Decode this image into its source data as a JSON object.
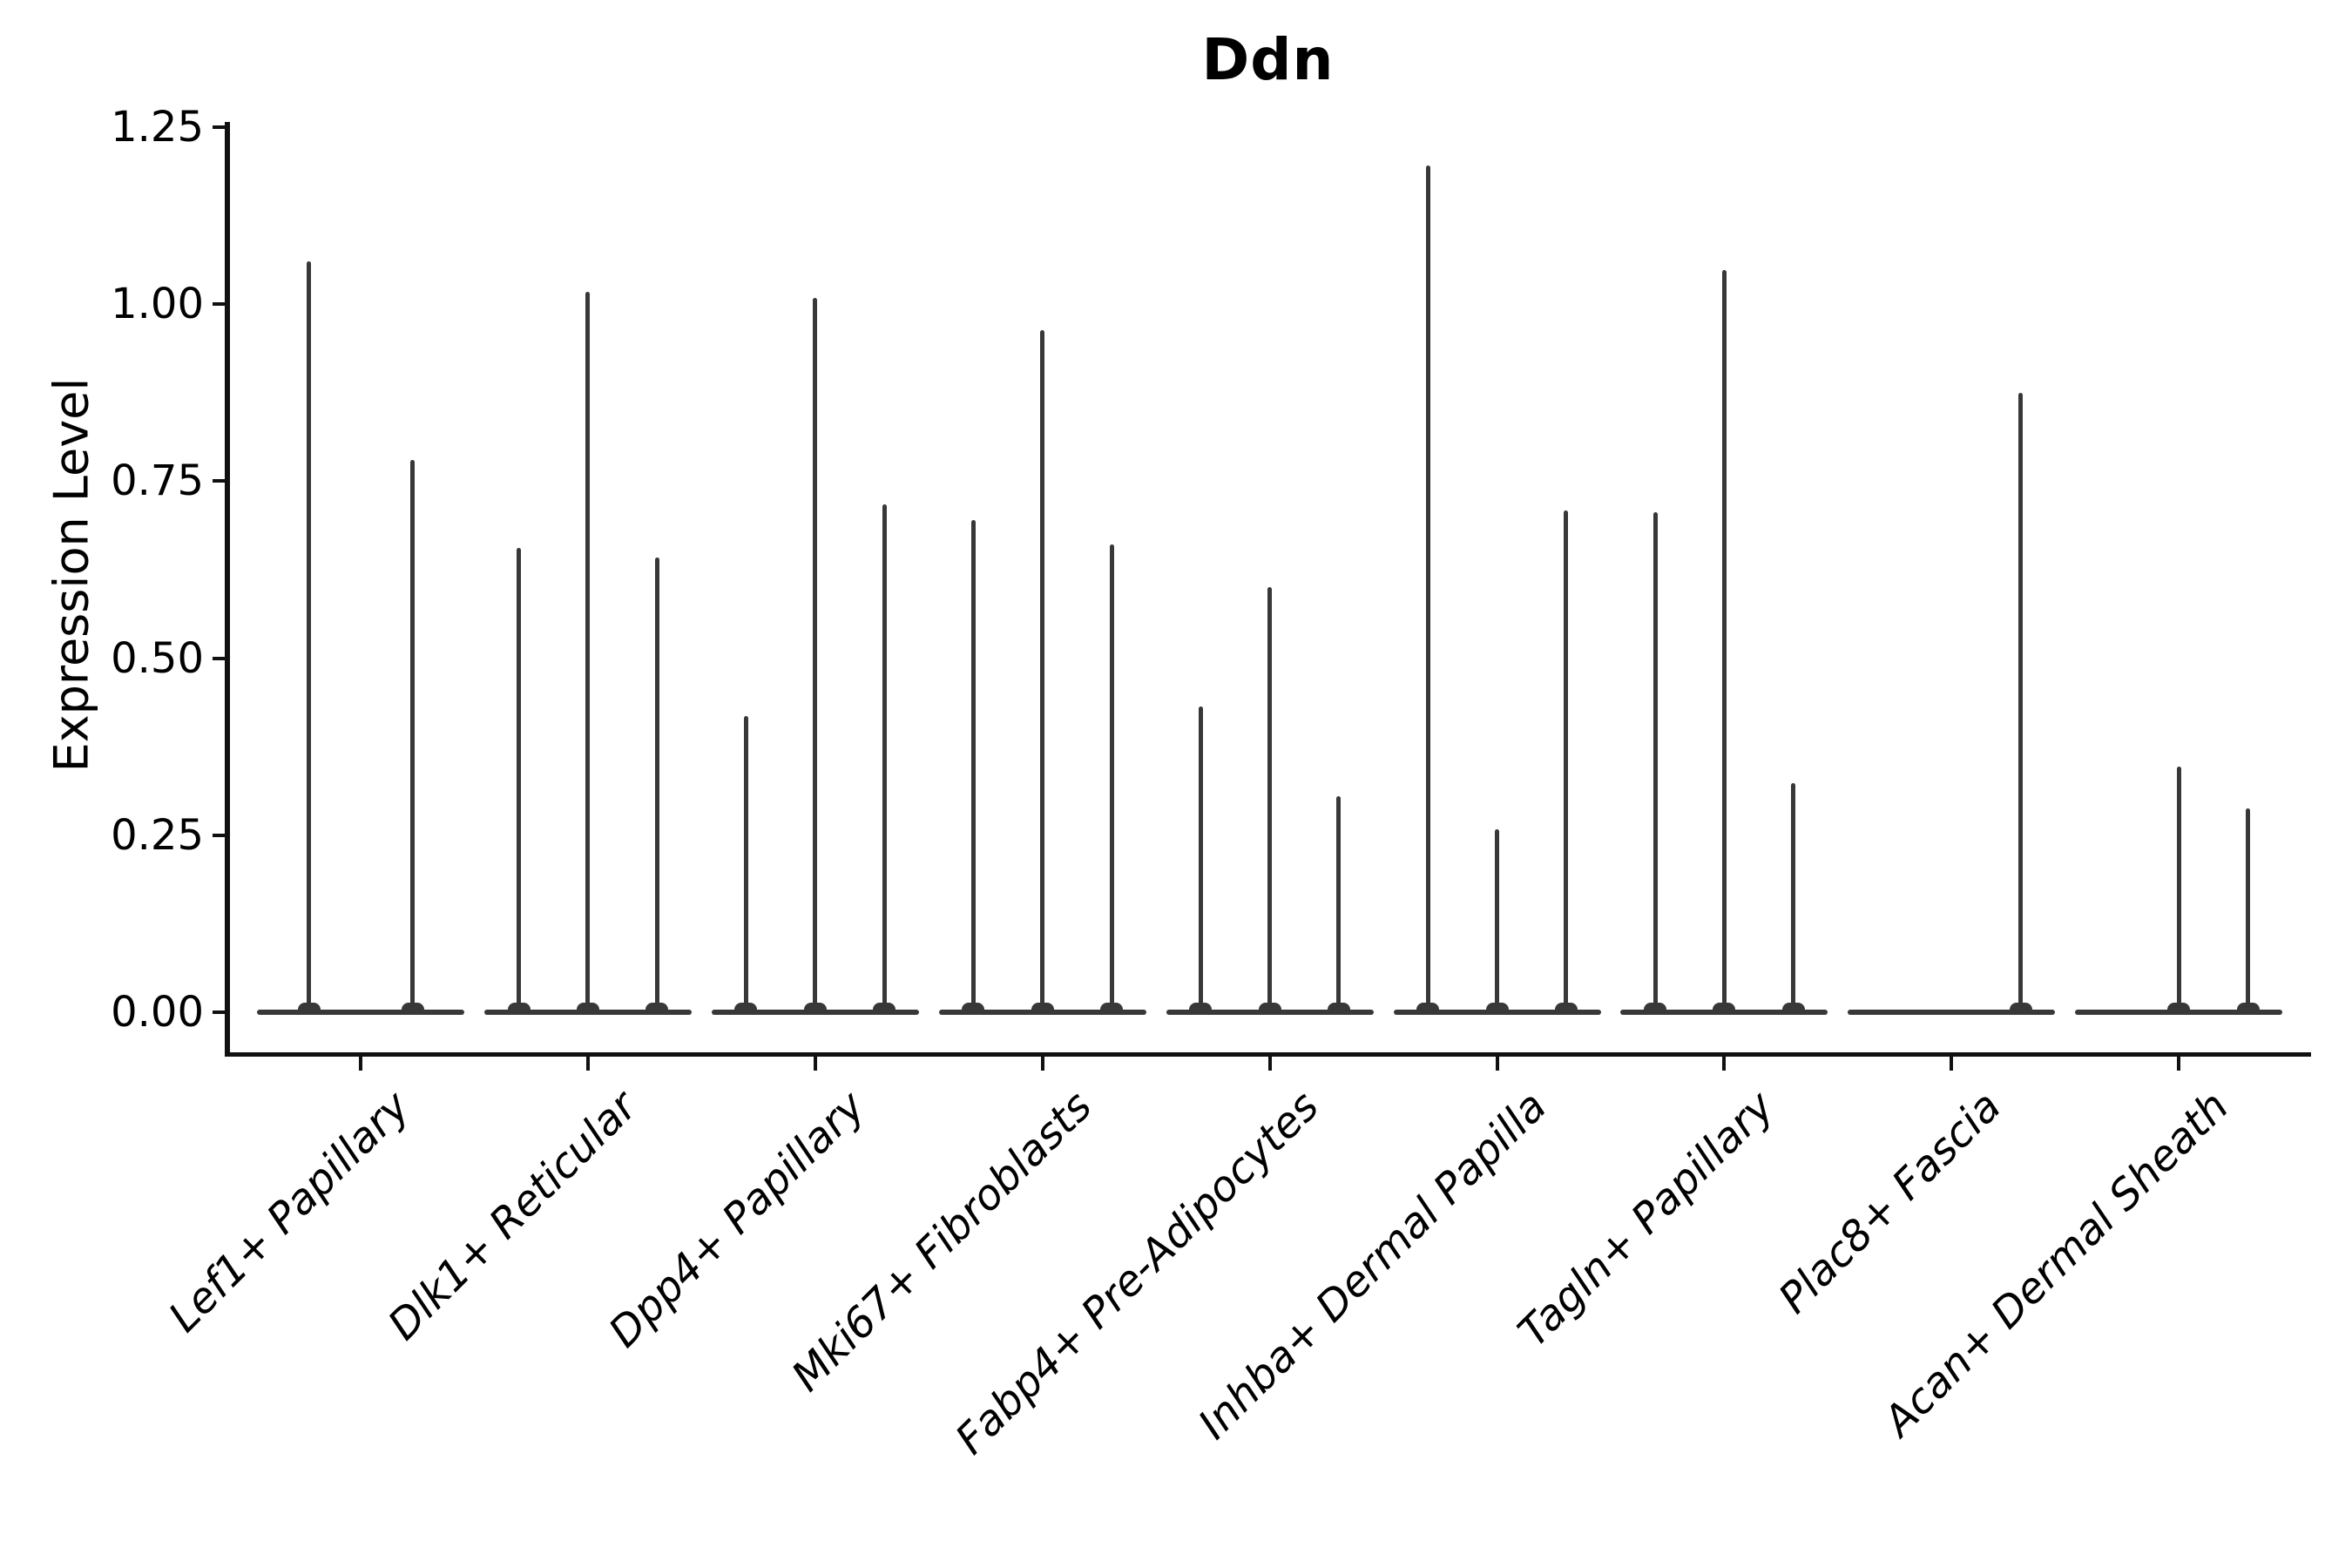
{
  "title": "Ddn",
  "y_axis": {
    "label": "Expression Level",
    "tick_labels": [
      "0.00",
      "0.25",
      "0.50",
      "0.75",
      "1.00",
      "1.25"
    ],
    "tick_values": [
      0.0,
      0.25,
      0.5,
      0.75,
      1.0,
      1.25
    ],
    "range": [
      0.0,
      1.25
    ]
  },
  "chart_data": {
    "type": "violin",
    "title": "Ddn",
    "xlabel": "",
    "ylabel": "Expression Level",
    "ylim": [
      0,
      1.25
    ],
    "yticks": [
      0.0,
      0.25,
      0.5,
      0.75,
      1.0,
      1.25
    ],
    "grid": false,
    "legend": "none",
    "description": "Violin plot of Ddn expression; violins are extremely thin spikes rising from a flat base at 0, grouped per cell type (2-3 sub-violins per group).",
    "categories": [
      "Lef1+ Papillary",
      "Dlk1+ Reticular",
      "Dpp4+ Papillary",
      "Mki67+ Fibroblasts",
      "Fabp4+ Pre-Adipocytes",
      "Inhba+ Dermal Papilla",
      "Tagln+ Papillary",
      "Plac8+ Fascia",
      "Acan+ Dermal Sheath"
    ],
    "groups": [
      {
        "category": "Lef1+ Papillary",
        "n_slots": 2,
        "violins": [
          {
            "slot": 1,
            "max": 1.06
          },
          {
            "slot": 2,
            "max": 0.78
          }
        ]
      },
      {
        "category": "Dlk1+ Reticular",
        "n_slots": 3,
        "violins": [
          {
            "slot": 1,
            "max": 0.655
          },
          {
            "slot": 2,
            "max": 1.017
          },
          {
            "slot": 3,
            "max": 0.642
          }
        ]
      },
      {
        "category": "Dpp4+ Papillary",
        "n_slots": 3,
        "violins": [
          {
            "slot": 1,
            "max": 0.418
          },
          {
            "slot": 2,
            "max": 1.008
          },
          {
            "slot": 3,
            "max": 0.717
          }
        ]
      },
      {
        "category": "Mki67+ Fibroblasts",
        "n_slots": 3,
        "violins": [
          {
            "slot": 1,
            "max": 0.695
          },
          {
            "slot": 2,
            "max": 0.963
          },
          {
            "slot": 3,
            "max": 0.661
          }
        ]
      },
      {
        "category": "Fabp4+ Pre-Adipocytes",
        "n_slots": 3,
        "violins": [
          {
            "slot": 1,
            "max": 0.432
          },
          {
            "slot": 2,
            "max": 0.6
          },
          {
            "slot": 3,
            "max": 0.305
          }
        ]
      },
      {
        "category": "Inhba+ Dermal Papilla",
        "n_slots": 3,
        "violins": [
          {
            "slot": 1,
            "max": 1.195
          },
          {
            "slot": 2,
            "max": 0.258
          },
          {
            "slot": 3,
            "max": 0.708
          }
        ]
      },
      {
        "category": "Tagln+ Papillary",
        "n_slots": 3,
        "violins": [
          {
            "slot": 1,
            "max": 0.706
          },
          {
            "slot": 2,
            "max": 1.048
          },
          {
            "slot": 3,
            "max": 0.323
          }
        ]
      },
      {
        "category": "Plac8+ Fascia",
        "n_slots": 3,
        "violins": [
          {
            "slot": 3,
            "max": 0.875
          }
        ]
      },
      {
        "category": "Acan+ Dermal Sheath",
        "n_slots": 3,
        "violins": [
          {
            "slot": 2,
            "max": 0.347
          },
          {
            "slot": 3,
            "max": 0.288
          }
        ]
      }
    ],
    "colors": {
      "violin_stroke": "#383838",
      "axis": "#111111",
      "text": "#000000",
      "background": "#ffffff"
    }
  }
}
